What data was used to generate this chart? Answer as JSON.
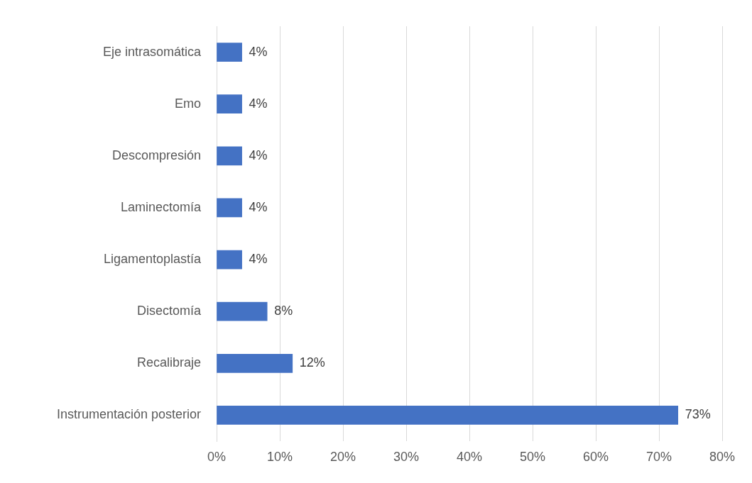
{
  "chart_data": {
    "type": "bar",
    "orientation": "horizontal",
    "categories": [
      "Eje intrasomática",
      "Emo",
      "Descompresión",
      "Laminectomía",
      "Ligamentoplastía",
      "Disectomía",
      "Recalibraje",
      "Instrumentación posterior"
    ],
    "values": [
      4,
      4,
      4,
      4,
      4,
      8,
      12,
      73
    ],
    "value_labels": [
      "4%",
      "4%",
      "4%",
      "4%",
      "4%",
      "8%",
      "12%",
      "73%"
    ],
    "color": "#4472c4",
    "xlim": [
      0,
      80
    ],
    "xticks": [
      {
        "value": 0,
        "label": "0%"
      },
      {
        "value": 10,
        "label": "10%"
      },
      {
        "value": 20,
        "label": "20%"
      },
      {
        "value": 30,
        "label": "30%"
      },
      {
        "value": 40,
        "label": "40%"
      },
      {
        "value": 50,
        "label": "50%"
      },
      {
        "value": 60,
        "label": "60%"
      },
      {
        "value": 70,
        "label": "70%"
      },
      {
        "value": 80,
        "label": "80%"
      }
    ],
    "grid": "x",
    "legend": false
  }
}
